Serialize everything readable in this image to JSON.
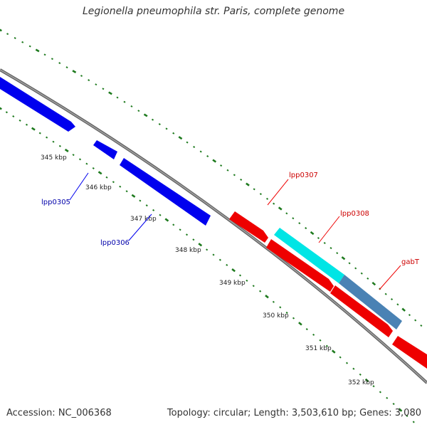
{
  "title": "Legionella pneumophila str. Paris, complete genome",
  "footer": {
    "accession": "Accession: NC_006368",
    "summary": "Topology: circular; Length: 3,503,610 bp; Genes: 3,080"
  },
  "colors": {
    "backbone": "#8c8c8c",
    "dots": "#1e7a1e",
    "forward_gene": "#ee0000",
    "reverse_gene": "#0000ee",
    "highlight_cyan": "#00e5e5",
    "highlight_steel": "#4a82b4",
    "reverse_label": "#0000aa",
    "forward_label": "#cc0000"
  },
  "ticks": [
    "345 kbp",
    "346 kbp",
    "347 kbp",
    "348 kbp",
    "349 kbp",
    "350 kbp",
    "351 kbp",
    "352 kbp"
  ],
  "genes": {
    "reverse": [
      {
        "name": "lpp0305"
      },
      {
        "name": "lpp0306"
      }
    ],
    "forward": [
      {
        "name": "lpp0307"
      },
      {
        "name": "lpp0308"
      },
      {
        "name": "gabT"
      }
    ]
  }
}
